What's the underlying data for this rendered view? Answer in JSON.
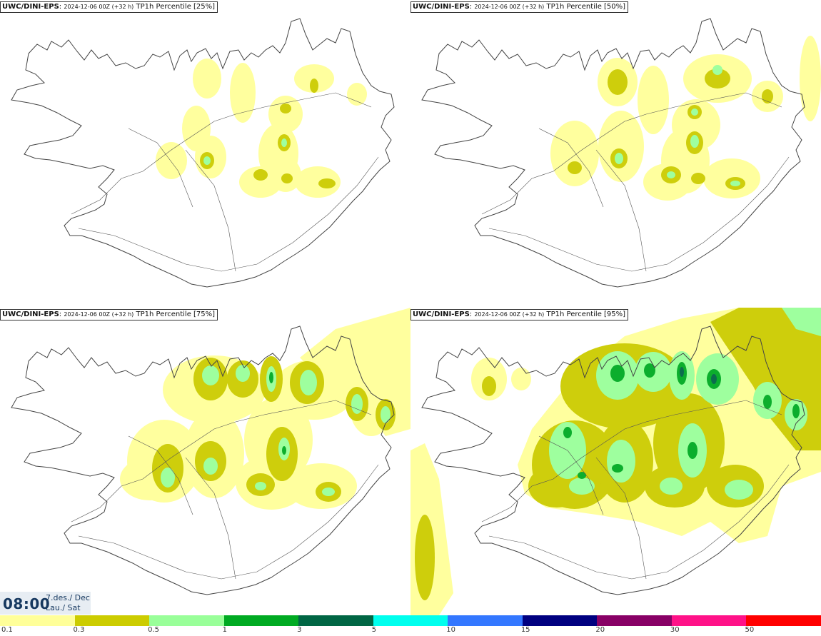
{
  "panels": [
    {
      "model": "UWC/DINI-EPS",
      "run": "2024-12-06 00Z (+32 h)",
      "product": "TP1h Percentile [25%]"
    },
    {
      "model": "UWC/DINI-EPS",
      "run": "2024-12-06 00Z (+32 h)",
      "product": "TP1h Percentile [50%]"
    },
    {
      "model": "UWC/DINI-EPS",
      "run": "2024-12-06 00Z (+32 h)",
      "product": "TP1h Percentile [75%]"
    },
    {
      "model": "UWC/DINI-EPS",
      "run": "2024-12-06 00Z (+32 h)",
      "product": "TP1h Percentile [95%]"
    }
  ],
  "time_box": {
    "time": "08:00",
    "date": "7.des./ Dec",
    "day": "Lau./ Sat"
  },
  "legend": {
    "colors": [
      "#ffff99",
      "#cccc00",
      "#99ff99",
      "#00aa22",
      "#006644",
      "#00ffee",
      "#3377ff",
      "#000080",
      "#880066",
      "#ff1188",
      "#ff0000"
    ],
    "ticks": [
      "0.1",
      "0.3",
      "0.5",
      "1",
      "3",
      "5",
      "10",
      "15",
      "20",
      "30",
      "50"
    ]
  },
  "colors": {
    "coastline": "#444444",
    "title_text": "#111111",
    "time_text": "#16385f",
    "time_bg": "#e7edf3"
  }
}
